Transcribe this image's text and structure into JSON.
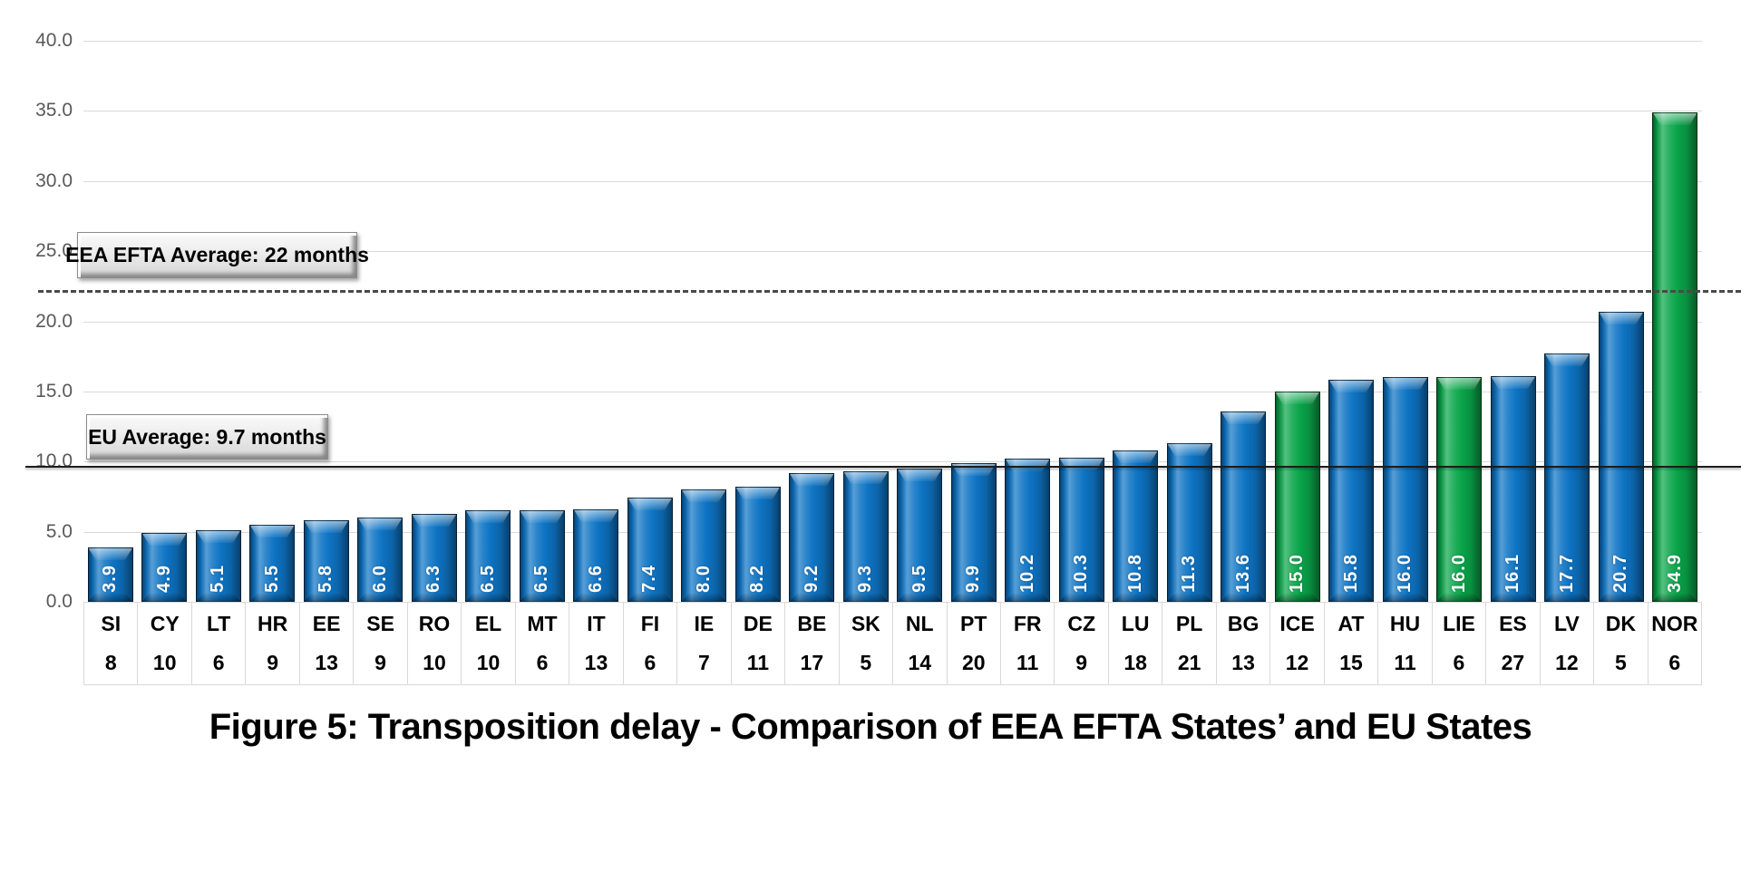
{
  "figure": {
    "title": "Figure 5: Transposition delay - Comparison of EEA EFTA States’ and EU States"
  },
  "annotations": {
    "eea_callout_label": "EEA EFTA Average: 22 months",
    "eu_callout_label": "EU Average: 9.7 months"
  },
  "colors": {
    "eu_bar": "#0e74c4",
    "eea_efta_bar": "#0aa54a",
    "gridline": "#d9d9d9",
    "axis_text": "#595959",
    "dashed_line": "#4a4a4a",
    "solid_line": "#1c1c1c"
  },
  "chart_data": {
    "type": "bar",
    "title": "Figure 5: Transposition delay - Comparison of EEA EFTA States’ and EU States",
    "xlabel": "",
    "ylabel": "",
    "ylim": [
      0,
      40
    ],
    "yticks": [
      0,
      5,
      10,
      15,
      20,
      25,
      30,
      35,
      40
    ],
    "ytick_labels": [
      "0.0",
      "5.0",
      "10.0",
      "15.0",
      "20.0",
      "25.0",
      "30.0",
      "35.0",
      "40.0"
    ],
    "grid": "horizontal",
    "legend": "none",
    "reference_lines": [
      {
        "label": "EEA EFTA Average: 22 months",
        "value": 22,
        "style": "dashed"
      },
      {
        "label": "EU Average: 9.7 months",
        "value": 9.7,
        "style": "solid"
      }
    ],
    "bars": [
      {
        "code": "SI",
        "value": 3.9,
        "value_label": "3.9",
        "count": "8",
        "group": "EU"
      },
      {
        "code": "CY",
        "value": 4.9,
        "value_label": "4.9",
        "count": "10",
        "group": "EU"
      },
      {
        "code": "LT",
        "value": 5.1,
        "value_label": "5.1",
        "count": "6",
        "group": "EU"
      },
      {
        "code": "HR",
        "value": 5.5,
        "value_label": "5.5",
        "count": "9",
        "group": "EU"
      },
      {
        "code": "EE",
        "value": 5.8,
        "value_label": "5.8",
        "count": "13",
        "group": "EU"
      },
      {
        "code": "SE",
        "value": 6.0,
        "value_label": "6.0",
        "count": "9",
        "group": "EU"
      },
      {
        "code": "RO",
        "value": 6.3,
        "value_label": "6.3",
        "count": "10",
        "group": "EU"
      },
      {
        "code": "EL",
        "value": 6.5,
        "value_label": "6.5",
        "count": "10",
        "group": "EU"
      },
      {
        "code": "MT",
        "value": 6.5,
        "value_label": "6.5",
        "count": "6",
        "group": "EU"
      },
      {
        "code": "IT",
        "value": 6.6,
        "value_label": "6.6",
        "count": "13",
        "group": "EU"
      },
      {
        "code": "FI",
        "value": 7.4,
        "value_label": "7.4",
        "count": "6",
        "group": "EU"
      },
      {
        "code": "IE",
        "value": 8.0,
        "value_label": "8.0",
        "count": "7",
        "group": "EU"
      },
      {
        "code": "DE",
        "value": 8.2,
        "value_label": "8.2",
        "count": "11",
        "group": "EU"
      },
      {
        "code": "BE",
        "value": 9.2,
        "value_label": "9.2",
        "count": "17",
        "group": "EU"
      },
      {
        "code": "SK",
        "value": 9.3,
        "value_label": "9.3",
        "count": "5",
        "group": "EU"
      },
      {
        "code": "NL",
        "value": 9.5,
        "value_label": "9.5",
        "count": "14",
        "group": "EU"
      },
      {
        "code": "PT",
        "value": 9.9,
        "value_label": "9.9",
        "count": "20",
        "group": "EU"
      },
      {
        "code": "FR",
        "value": 10.2,
        "value_label": "10.2",
        "count": "11",
        "group": "EU"
      },
      {
        "code": "CZ",
        "value": 10.3,
        "value_label": "10.3",
        "count": "9",
        "group": "EU"
      },
      {
        "code": "LU",
        "value": 10.8,
        "value_label": "10.8",
        "count": "18",
        "group": "EU"
      },
      {
        "code": "PL",
        "value": 11.3,
        "value_label": "11.3",
        "count": "21",
        "group": "EU"
      },
      {
        "code": "BG",
        "value": 13.6,
        "value_label": "13.6",
        "count": "13",
        "group": "EU"
      },
      {
        "code": "ICE",
        "value": 15.0,
        "value_label": "15.0",
        "count": "12",
        "group": "EEA EFTA"
      },
      {
        "code": "AT",
        "value": 15.8,
        "value_label": "15.8",
        "count": "15",
        "group": "EU"
      },
      {
        "code": "HU",
        "value": 16.0,
        "value_label": "16.0",
        "count": "11",
        "group": "EU"
      },
      {
        "code": "LIE",
        "value": 16.0,
        "value_label": "16.0",
        "count": "6",
        "group": "EEA EFTA"
      },
      {
        "code": "ES",
        "value": 16.1,
        "value_label": "16.1",
        "count": "27",
        "group": "EU"
      },
      {
        "code": "LV",
        "value": 17.7,
        "value_label": "17.7",
        "count": "12",
        "group": "EU"
      },
      {
        "code": "DK",
        "value": 20.7,
        "value_label": "20.7",
        "count": "5",
        "group": "EU"
      },
      {
        "code": "NOR",
        "value": 34.9,
        "value_label": "34.9",
        "count": "6",
        "group": "EEA EFTA"
      }
    ]
  }
}
